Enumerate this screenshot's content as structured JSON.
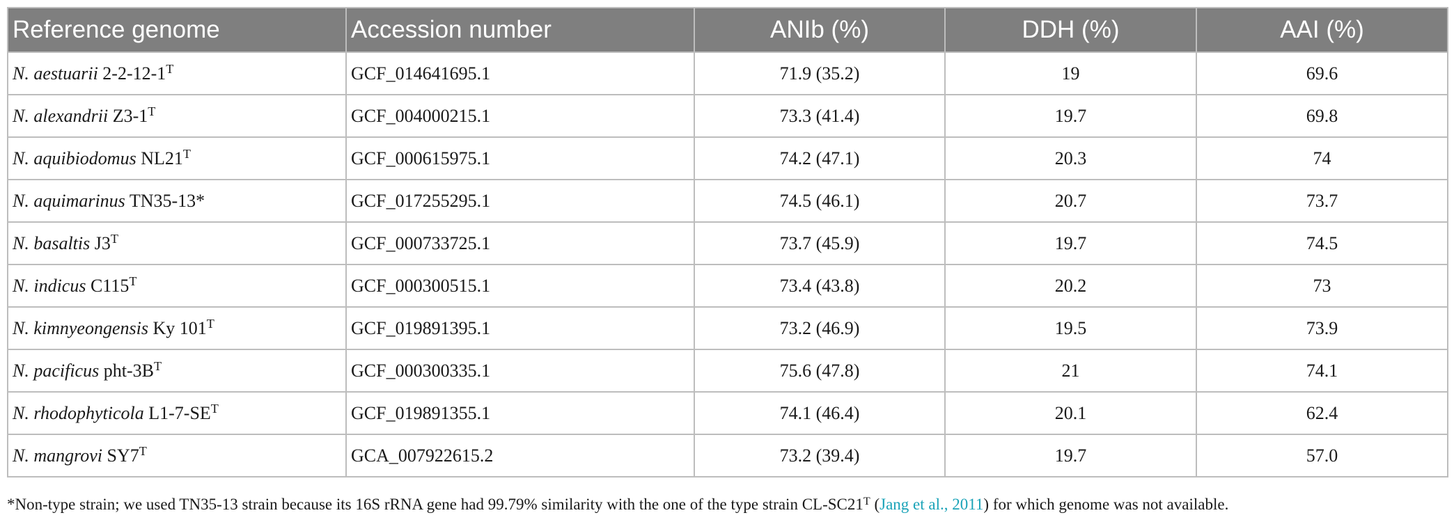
{
  "table": {
    "headers": [
      "Reference genome",
      "Accession number",
      "ANIb (%)",
      "DDH (%)",
      "AAI (%)"
    ],
    "rows": [
      {
        "species": "N. aestuarii",
        "strain": " 2-2-12-1",
        "sup": "T",
        "accession": "GCF_014641695.1",
        "anib": "71.9 (35.2)",
        "ddh": "19",
        "aai": "69.6"
      },
      {
        "species": "N. alexandrii",
        "strain": " Z3-1",
        "sup": "T",
        "accession": "GCF_004000215.1",
        "anib": "73.3 (41.4)",
        "ddh": "19.7",
        "aai": "69.8"
      },
      {
        "species": "N. aquibiodomus",
        "strain": " NL21",
        "sup": "T",
        "accession": "GCF_000615975.1",
        "anib": "74.2 (47.1)",
        "ddh": "20.3",
        "aai": "74"
      },
      {
        "species": "N. aquimarinus",
        "strain": " TN35-13*",
        "sup": "",
        "accession": "GCF_017255295.1",
        "anib": "74.5 (46.1)",
        "ddh": "20.7",
        "aai": "73.7"
      },
      {
        "species": "N. basaltis",
        "strain": " J3",
        "sup": "T",
        "accession": "GCF_000733725.1",
        "anib": "73.7 (45.9)",
        "ddh": "19.7",
        "aai": "74.5"
      },
      {
        "species": "N. indicus",
        "strain": " C115",
        "sup": "T",
        "accession": "GCF_000300515.1",
        "anib": "73.4 (43.8)",
        "ddh": "20.2",
        "aai": "73"
      },
      {
        "species": "N. kimnyeongensis",
        "strain": " Ky 101",
        "sup": "T",
        "accession": "GCF_019891395.1",
        "anib": "73.2 (46.9)",
        "ddh": "19.5",
        "aai": "73.9"
      },
      {
        "species": "N. pacificus",
        "strain": " pht-3B",
        "sup": "T",
        "accession": "GCF_000300335.1",
        "anib": "75.6 (47.8)",
        "ddh": "21",
        "aai": "74.1"
      },
      {
        "species": "N. rhodophyticola",
        "strain": " L1-7-SE",
        "sup": "T",
        "accession": "GCF_019891355.1",
        "anib": "74.1 (46.4)",
        "ddh": "20.1",
        "aai": "62.4"
      },
      {
        "species": "N. mangrovi",
        "strain": " SY7",
        "sup": "T",
        "accession": "GCA_007922615.2",
        "anib": "73.2 (39.4)",
        "ddh": "19.7",
        "aai": "57.0"
      }
    ]
  },
  "footnote": {
    "text_before": "*Non-type strain; we used TN35-13 strain because its 16S rRNA gene had 99.79% similarity with the one of the type strain CL-SC21",
    "sup": "T",
    "open_paren": " (",
    "citation": "Jang et al., 2011",
    "text_after": ") for which genome was not available.",
    "citation_color": "#1aa3b8"
  }
}
